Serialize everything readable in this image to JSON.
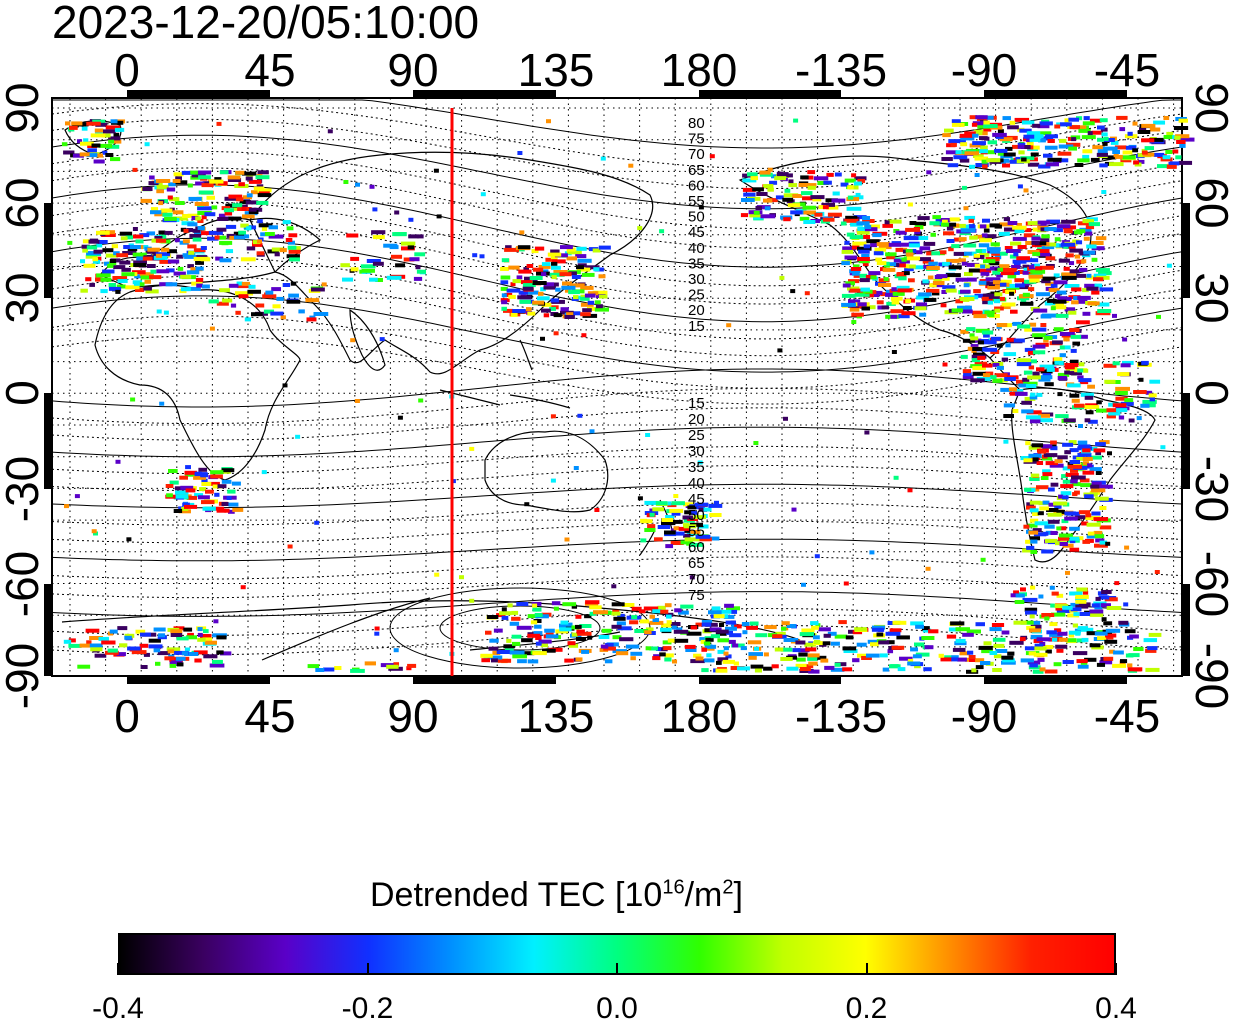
{
  "timestamp": "2023-12-20/05:10:00",
  "map": {
    "x_tick_labels": [
      "0",
      "45",
      "90",
      "135",
      "180",
      "-135",
      "-90",
      "-45"
    ],
    "y_tick_labels": [
      "90",
      "60",
      "30",
      "0",
      "-30",
      "-60",
      "-90"
    ],
    "contour_labels_north": [
      "80",
      "75",
      "70",
      "65",
      "60",
      "55",
      "50",
      "45",
      "40",
      "35",
      "30",
      "25",
      "20",
      "15"
    ],
    "contour_labels_south": [
      "15",
      "20",
      "25",
      "30",
      "35",
      "40",
      "45",
      "50",
      "55",
      "60",
      "65",
      "70",
      "75"
    ],
    "terminator_color": "#ff0000"
  },
  "colorbar": {
    "title": "Detrended TEC  [10",
    "title_exp": "16",
    "title_unit": "/m",
    "title_unit_exp": "2",
    "title_end": "]",
    "tick_labels": [
      "-0.4",
      "-0.2",
      "0.0",
      "0.2",
      "0.4"
    ],
    "min": -0.4,
    "max": 0.4,
    "stops": [
      "#000000",
      "#3a0060",
      "#5a00c8",
      "#1030ff",
      "#0090ff",
      "#00f0ff",
      "#00ff80",
      "#30ff00",
      "#c0ff00",
      "#ffff00",
      "#ff9000",
      "#ff2000",
      "#ff0000"
    ]
  }
}
